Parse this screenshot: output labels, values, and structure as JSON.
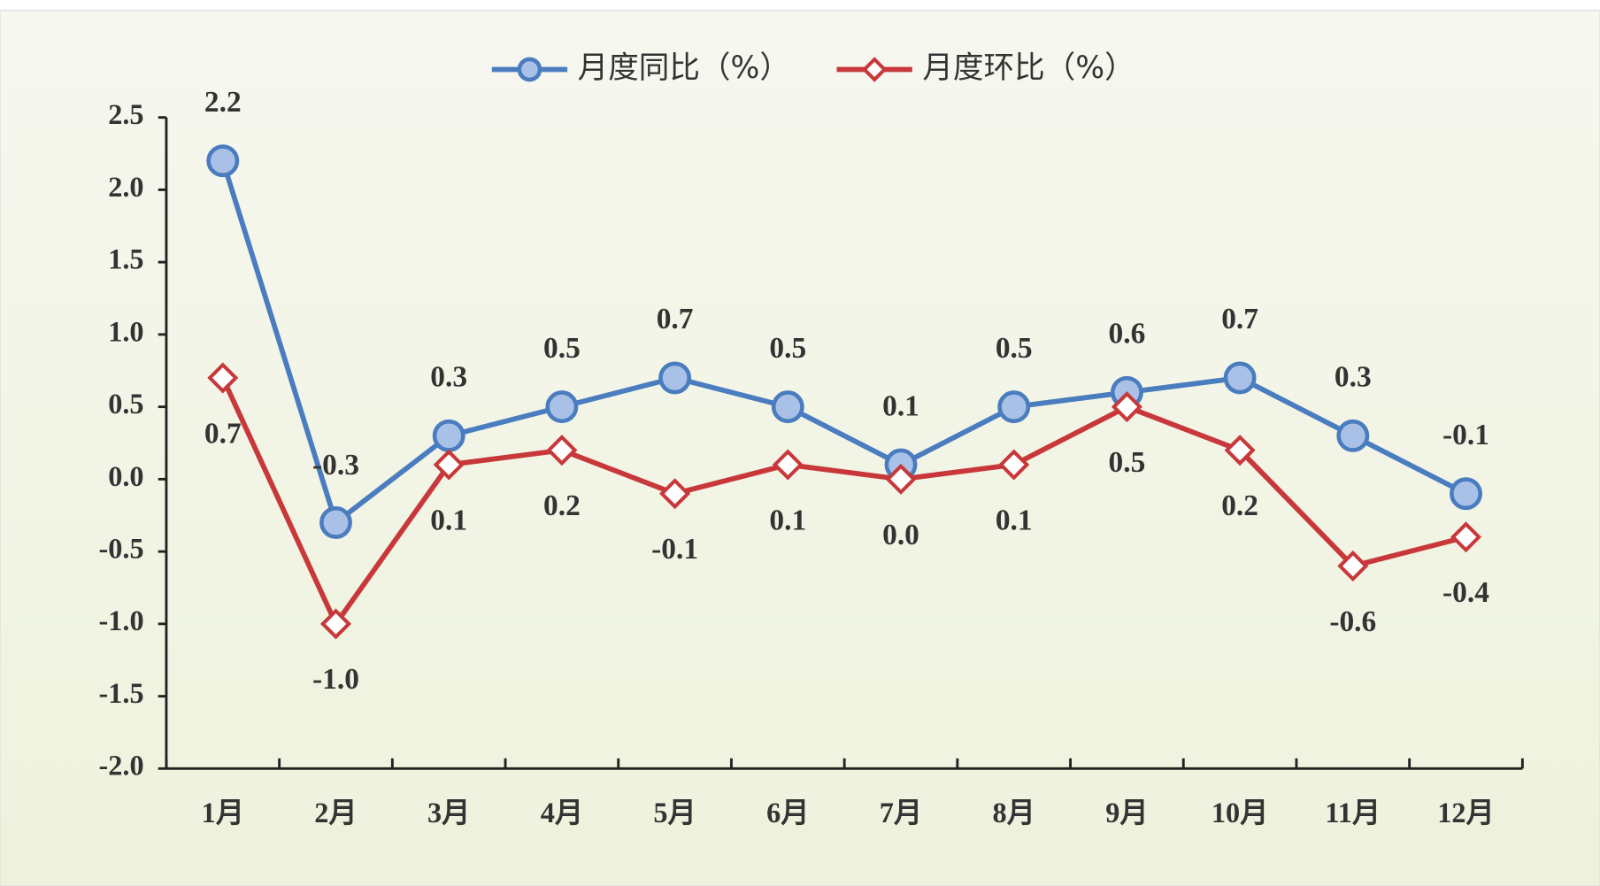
{
  "chart_data": {
    "type": "line",
    "categories": [
      "1月",
      "2月",
      "3月",
      "4月",
      "5月",
      "6月",
      "7月",
      "8月",
      "9月",
      "10月",
      "11月",
      "12月"
    ],
    "series": [
      {
        "name": "月度同比（%）",
        "color": "#4a7cc0",
        "marker_fill": "#a9c1e6",
        "values": [
          2.2,
          -0.3,
          0.3,
          0.5,
          0.7,
          0.5,
          0.1,
          0.5,
          0.6,
          0.7,
          0.3,
          -0.1
        ],
        "value_labels": [
          "2.2",
          "-0.3",
          "0.3",
          "0.5",
          "0.7",
          "0.5",
          "0.1",
          "0.5",
          "0.6",
          "0.7",
          "0.3",
          "-0.1"
        ]
      },
      {
        "name": "月度环比（%）",
        "color": "#c8383a",
        "marker_fill": "#ffffff",
        "values": [
          0.7,
          -1.0,
          0.1,
          0.2,
          -0.1,
          0.1,
          0.0,
          0.1,
          0.5,
          0.2,
          -0.6,
          -0.4
        ],
        "value_labels": [
          "0.7",
          "-1.0",
          "0.1",
          "0.2",
          "-0.1",
          "0.1",
          "0.0",
          "0.1",
          "0.5",
          "0.2",
          "-0.6",
          "-0.4"
        ]
      }
    ],
    "ylim": [
      -2.0,
      2.5
    ],
    "yticks": [
      {
        "value": -2.0,
        "label": "-2.0"
      },
      -1.5,
      {
        "value": -1.0,
        "label": "-1.0"
      },
      -0.5,
      {
        "value": 0,
        "label": "0.0"
      },
      0.5,
      {
        "value": 1.0,
        "label": "1.0"
      },
      1.5,
      {
        "value": 2.0,
        "label": "2.0"
      },
      2.5
    ],
    "grid": false
  }
}
